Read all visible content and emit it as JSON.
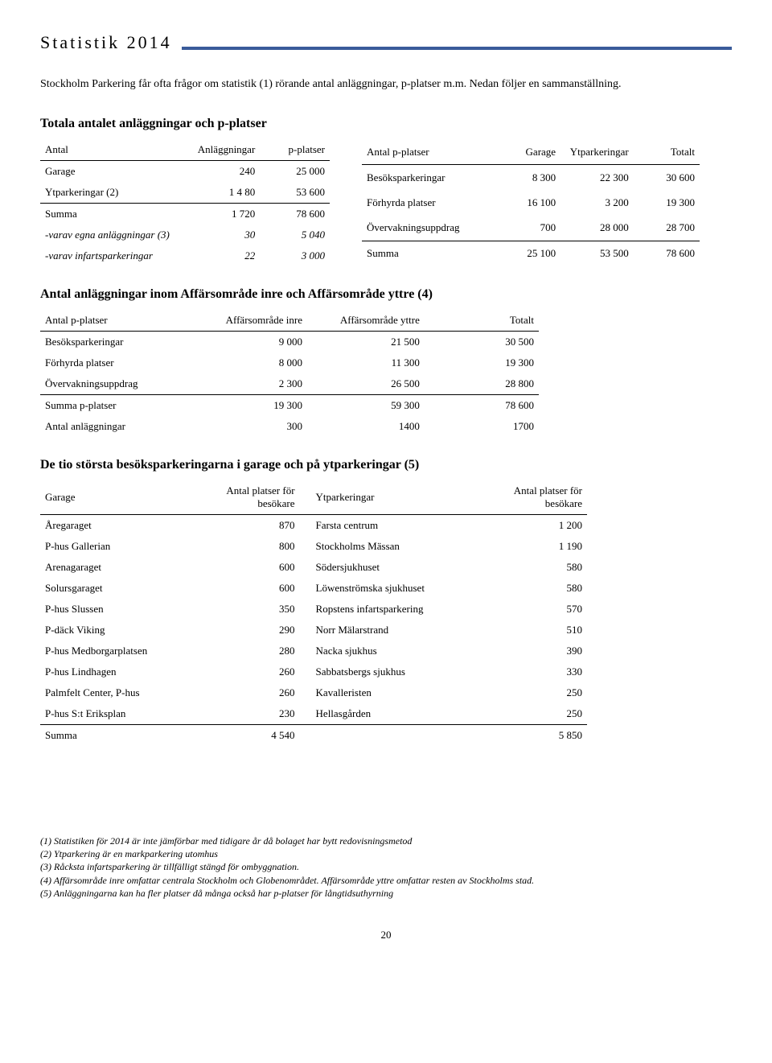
{
  "header": {
    "title": "Statistik 2014",
    "accent_color": "#3a5b9a"
  },
  "intro": "Stockholm Parkering får ofta frågor om statistik (1) rörande antal anläggningar, p-platser m.m. Nedan följer en sammanställning.",
  "section1": {
    "heading": "Totala antalet anläggningar och p-platser",
    "left": {
      "cols": [
        "Antal",
        "Anläggningar",
        "p-platser"
      ],
      "rows": [
        {
          "label": "Garage",
          "v1": "240",
          "v2": "25 000"
        },
        {
          "label": "Ytparkeringar (2)",
          "v1": "1 4 80",
          "v2": "53 600"
        }
      ],
      "sum": {
        "label": "Summa",
        "v1": "1 720",
        "v2": "78 600"
      },
      "sub": [
        {
          "label": "-varav egna anläggningar (3)",
          "v1": "30",
          "v2": "5 040"
        },
        {
          "label": "-varav infartsparkeringar",
          "v1": "22",
          "v2": "3 000"
        }
      ]
    },
    "right": {
      "cols": [
        "Antal p-platser",
        "Garage",
        "Ytparkeringar",
        "Totalt"
      ],
      "rows": [
        {
          "label": "Besöksparkeringar",
          "v1": "8 300",
          "v2": "22 300",
          "v3": "30 600"
        },
        {
          "label": "Förhyrda platser",
          "v1": "16 100",
          "v2": "3 200",
          "v3": "19 300"
        },
        {
          "label": "Övervakningsuppdrag",
          "v1": "700",
          "v2": "28 000",
          "v3": "28 700"
        }
      ],
      "sum": {
        "label": "Summa",
        "v1": "25 100",
        "v2": "53 500",
        "v3": "78 600"
      }
    }
  },
  "section2": {
    "heading": "Antal anläggningar inom Affärsområde inre och Affärsområde yttre (4)",
    "cols": [
      "Antal p-platser",
      "Affärsområde inre",
      "Affärsområde yttre",
      "Totalt"
    ],
    "rows": [
      {
        "label": "Besöksparkeringar",
        "v1": "9 000",
        "v2": "21 500",
        "v3": "30 500"
      },
      {
        "label": "Förhyrda platser",
        "v1": "8 000",
        "v2": "11 300",
        "v3": "19 300"
      },
      {
        "label": "Övervakningsuppdrag",
        "v1": "2 300",
        "v2": "26 500",
        "v3": "28 800"
      }
    ],
    "sum": {
      "label": "Summa p-platser",
      "v1": "19 300",
      "v2": "59 300",
      "v3": "78 600"
    },
    "extra": {
      "label": "Antal anläggningar",
      "v1": "300",
      "v2": "1400",
      "v3": "1700"
    }
  },
  "section3": {
    "heading": "De tio största besöksparkeringarna i garage och på ytparkeringar (5)",
    "cols": {
      "c1": "Garage",
      "c2": "Antal platser för besökare",
      "c3": "Ytparkeringar",
      "c4": "Antal platser för besökare"
    },
    "rows": [
      {
        "g": "Åregaraget",
        "gn": "870",
        "y": "Farsta centrum",
        "yn": "1 200"
      },
      {
        "g": "P-hus Gallerian",
        "gn": "800",
        "y": "Stockholms Mässan",
        "yn": "1 190"
      },
      {
        "g": "Arenagaraget",
        "gn": "600",
        "y": "Södersjukhuset",
        "yn": "580"
      },
      {
        "g": "Solursgaraget",
        "gn": "600",
        "y": "Löwenströmska sjukhuset",
        "yn": "580"
      },
      {
        "g": "P-hus Slussen",
        "gn": "350",
        "y": "Ropstens infartsparkering",
        "yn": "570"
      },
      {
        "g": "P-däck Viking",
        "gn": "290",
        "y": "Norr Mälarstrand",
        "yn": "510"
      },
      {
        "g": "P-hus Medborgarplatsen",
        "gn": "280",
        "y": "Nacka sjukhus",
        "yn": "390"
      },
      {
        "g": "P-hus Lindhagen",
        "gn": "260",
        "y": "Sabbatsbergs sjukhus",
        "yn": "330"
      },
      {
        "g": "Palmfelt Center, P-hus",
        "gn": "260",
        "y": "Kavalleristen",
        "yn": "250"
      },
      {
        "g": "P-hus S:t Eriksplan",
        "gn": "230",
        "y": "Hellasgården",
        "yn": "250"
      }
    ],
    "sum": {
      "g": "Summa",
      "gn": "4 540",
      "y": "",
      "yn": "5 850"
    }
  },
  "footnotes": [
    "(1) Statistiken för 2014 är inte jämförbar med tidigare år då bolaget har bytt redovisningsmetod",
    "(2) Ytparkering är en markparkering utomhus",
    "(3) Råcksta infartsparkering är tillfälligt stängd för ombyggnation.",
    "(4) Affärsområde inre omfattar centrala Stockholm och Globenområdet. Affärsområde yttre omfattar resten av Stockholms stad.",
    "(5) Anläggningarna kan ha fler platser då många också har p-platser för långtidsuthyrning"
  ],
  "pagenum": "20"
}
